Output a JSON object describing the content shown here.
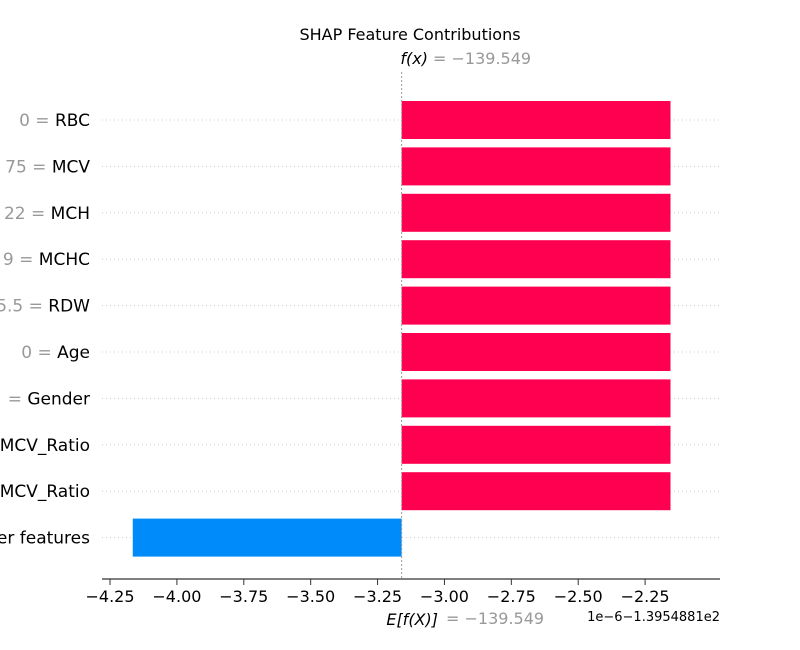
{
  "chart_data": {
    "type": "bar",
    "title": "SHAP Feature Contributions",
    "fx_label": "f(x)",
    "fx_value": "= −139.549",
    "efx_label": "E[f(X)]",
    "efx_value": "= −139.549",
    "offset_text": "1e−6−1.3954881e2",
    "xlim": [
      -4.28,
      -1.97
    ],
    "base_value": -3.16,
    "x_ticks": [
      {
        "value": -4.25,
        "label": "−4.25"
      },
      {
        "value": -4.0,
        "label": "−4.00"
      },
      {
        "value": -3.75,
        "label": "−3.75"
      },
      {
        "value": -3.5,
        "label": "−3.50"
      },
      {
        "value": -3.25,
        "label": "−3.25"
      },
      {
        "value": -3.0,
        "label": "−3.00"
      },
      {
        "value": -2.75,
        "label": "−2.75"
      },
      {
        "value": -2.5,
        "label": "−2.50"
      },
      {
        "value": -2.25,
        "label": "−2.25"
      }
    ],
    "features": [
      {
        "value_label": "0 =",
        "name": "RBC",
        "start": -3.16,
        "end": -2.155
      },
      {
        "value_label": "75 =",
        "name": "MCV",
        "start": -3.16,
        "end": -2.155
      },
      {
        "value_label": "22 =",
        "name": "MCH",
        "start": -3.16,
        "end": -2.155
      },
      {
        "value_label": "9 =",
        "name": "MCHC",
        "start": -3.16,
        "end": -2.155
      },
      {
        "value_label": "5.5 =",
        "name": "RDW",
        "start": -3.16,
        "end": -2.155
      },
      {
        "value_label": "0 =",
        "name": "Age",
        "start": -3.16,
        "end": -2.155
      },
      {
        "value_label": "=",
        "name": "Gender",
        "start": -3.16,
        "end": -2.155
      },
      {
        "value_label": "",
        "name": "MCV_Ratio",
        "start": -3.16,
        "end": -2.155
      },
      {
        "value_label": "",
        "name": "MCV_Ratio",
        "start": -3.16,
        "end": -2.155
      },
      {
        "value_label": "",
        "name": "er features",
        "start": -3.16,
        "end": -4.165
      }
    ],
    "colors": {
      "positive": "#ff0051",
      "negative": "#008bfb",
      "grid": "#cccccc",
      "axis": "#333333",
      "muted": "#999999"
    },
    "grid": true
  }
}
